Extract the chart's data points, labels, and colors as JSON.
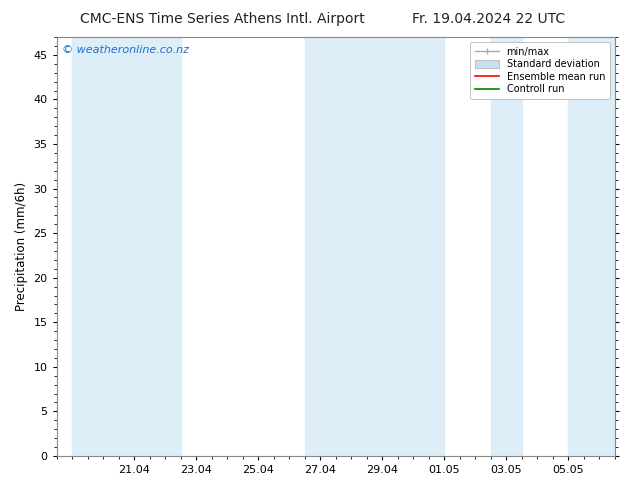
{
  "title_left": "CMC-ENS Time Series Athens Intl. Airport",
  "title_right": "Fr. 19.04.2024 22 UTC",
  "ylabel": "Precipitation (mm/6h)",
  "watermark": "© weatheronline.co.nz",
  "ylim": [
    0,
    47
  ],
  "yticks": [
    0,
    5,
    10,
    15,
    20,
    25,
    30,
    35,
    40,
    45
  ],
  "background_color": "#ffffff",
  "plot_bg_color": "#ffffff",
  "shaded_band_color": "#ddeef9",
  "x_tick_dates": [
    "21.04",
    "23.04",
    "25.04",
    "27.04",
    "29.04",
    "01.05",
    "03.05",
    "05.05"
  ],
  "x_tick_positions": [
    2,
    4,
    6,
    8,
    10,
    12,
    14,
    16
  ],
  "xlim": [
    -0.5,
    17.5
  ],
  "shaded_bands_x": [
    [
      0,
      2.0
    ],
    [
      2.0,
      3.5
    ],
    [
      7.5,
      9.5
    ],
    [
      9.5,
      11.0
    ],
    [
      11.0,
      12.0
    ],
    [
      13.5,
      14.5
    ],
    [
      16.0,
      17.5
    ]
  ],
  "legend_labels": [
    "min/max",
    "Standard deviation",
    "Ensemble mean run",
    "Controll run"
  ],
  "legend_colors": [
    "#aaaaaa",
    "#c8dff0",
    "#ff0000",
    "#008000"
  ],
  "title_fontsize": 10,
  "watermark_color": "#1a6fcc",
  "tick_label_fontsize": 8,
  "ylabel_fontsize": 8.5
}
